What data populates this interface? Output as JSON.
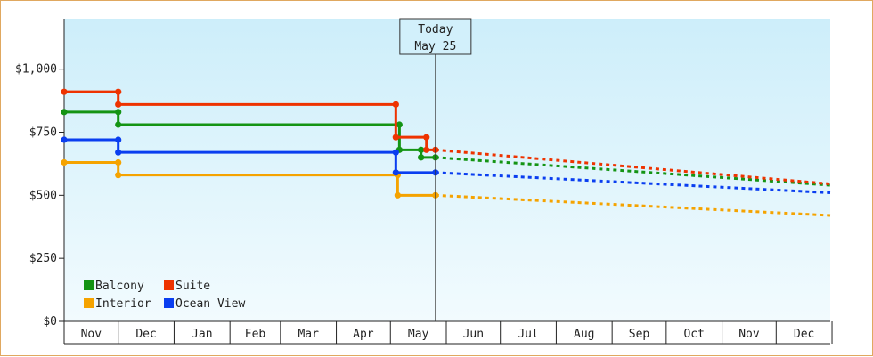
{
  "chart_data": {
    "type": "line",
    "title": "",
    "xlabel": "",
    "ylabel": "",
    "ylim": [
      0,
      1200
    ],
    "y_ticks": [
      {
        "value": 0,
        "label": "$0"
      },
      {
        "value": 250,
        "label": "$250"
      },
      {
        "value": 500,
        "label": "$500"
      },
      {
        "value": 750,
        "label": "$750"
      },
      {
        "value": 1000,
        "label": "$1,000"
      }
    ],
    "x_range": [
      "Nov 1",
      "Dec 31"
    ],
    "months": [
      "Nov",
      "Dec",
      "Jan",
      "Feb",
      "Mar",
      "Apr",
      "May",
      "Jun",
      "Jul",
      "Aug",
      "Sep",
      "Oct",
      "Nov",
      "Dec"
    ],
    "today": {
      "line1": "Today",
      "line2": "May 25",
      "x": 206
    },
    "background": {
      "top": "#cdeefa",
      "bottom": "#f2fbfe"
    },
    "legend": {
      "placement": "bottom-left",
      "entries": [
        {
          "name": "Balcony",
          "color": "#149414"
        },
        {
          "name": "Suite",
          "color": "#ee3300"
        },
        {
          "name": "Interior",
          "color": "#f5a300"
        },
        {
          "name": "Ocean View",
          "color": "#0a3ef0"
        }
      ]
    },
    "series": [
      {
        "name": "Balcony",
        "color": "#149414",
        "points": [
          [
            0,
            830
          ],
          [
            30,
            830
          ],
          [
            30,
            780
          ],
          [
            186,
            780
          ],
          [
            186,
            680
          ],
          [
            198,
            680
          ],
          [
            198,
            650
          ],
          [
            206,
            650
          ]
        ],
        "projection": [
          [
            206,
            650
          ],
          [
            425,
            540
          ]
        ]
      },
      {
        "name": "Suite",
        "color": "#ee3300",
        "points": [
          [
            0,
            910
          ],
          [
            30,
            910
          ],
          [
            30,
            860
          ],
          [
            184,
            860
          ],
          [
            184,
            730
          ],
          [
            201,
            730
          ],
          [
            201,
            680
          ],
          [
            206,
            680
          ]
        ],
        "projection": [
          [
            206,
            680
          ],
          [
            425,
            545
          ]
        ]
      },
      {
        "name": "Interior",
        "color": "#f5a300",
        "points": [
          [
            0,
            630
          ],
          [
            30,
            630
          ],
          [
            30,
            580
          ],
          [
            185,
            580
          ],
          [
            185,
            500
          ],
          [
            206,
            500
          ]
        ],
        "projection": [
          [
            206,
            500
          ],
          [
            425,
            420
          ]
        ]
      },
      {
        "name": "Ocean View",
        "color": "#0a3ef0",
        "points": [
          [
            0,
            720
          ],
          [
            30,
            720
          ],
          [
            30,
            670
          ],
          [
            184,
            670
          ],
          [
            184,
            590
          ],
          [
            206,
            590
          ]
        ],
        "projection": [
          [
            206,
            590
          ],
          [
            425,
            510
          ]
        ]
      }
    ]
  }
}
